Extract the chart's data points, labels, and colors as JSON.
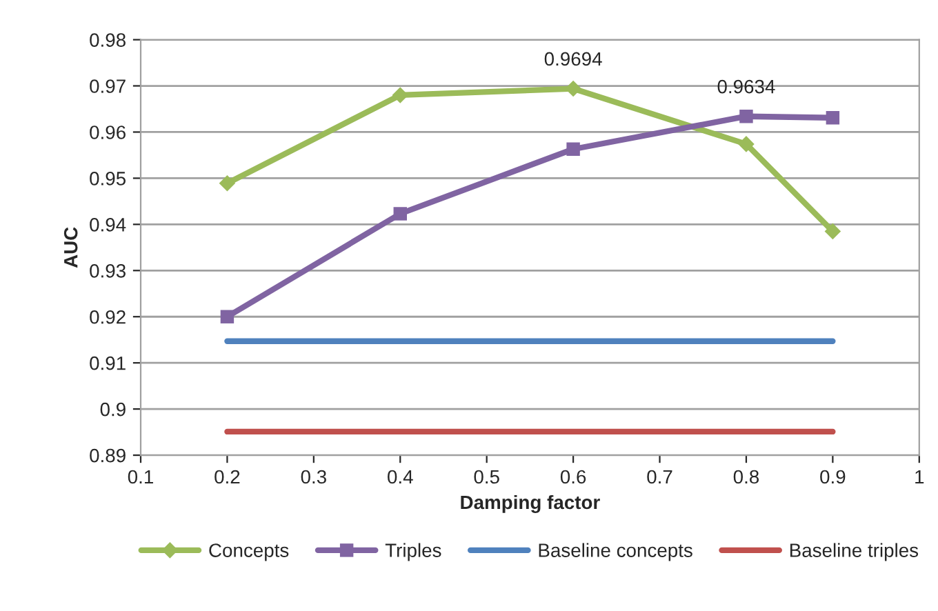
{
  "chart_data": {
    "type": "line",
    "xlabel": "Damping factor",
    "ylabel": "AUC",
    "xlim": [
      0.1,
      1
    ],
    "xticks": [
      0.1,
      0.2,
      0.3,
      0.4,
      0.5,
      0.6,
      0.7,
      0.8,
      0.9,
      1
    ],
    "ylim": [
      0.89,
      0.98
    ],
    "yticks": [
      0.89,
      0.9,
      0.91,
      0.92,
      0.93,
      0.94,
      0.95,
      0.96,
      0.97,
      0.98
    ],
    "grid": "y",
    "legend": "bottom",
    "series": [
      {
        "name": "Concepts",
        "color": "#9bbb59",
        "marker": "diamond",
        "x": [
          0.2,
          0.4,
          0.6,
          0.8,
          0.9
        ],
        "values": [
          0.9489,
          0.968,
          0.9694,
          0.9574,
          0.9385
        ]
      },
      {
        "name": "Triples",
        "color": "#8064a2",
        "marker": "square",
        "x": [
          0.2,
          0.4,
          0.6,
          0.8,
          0.9
        ],
        "values": [
          0.92,
          0.9423,
          0.9563,
          0.9634,
          0.9631
        ]
      },
      {
        "name": "Baseline concepts",
        "color": "#4f81bd",
        "marker": "none",
        "x": [
          0.2,
          0.9
        ],
        "values": [
          0.9147,
          0.9147
        ]
      },
      {
        "name": "Baseline triples",
        "color": "#c0504d",
        "marker": "none",
        "x": [
          0.2,
          0.9
        ],
        "values": [
          0.8951,
          0.8951
        ]
      }
    ],
    "annotations": [
      {
        "text": "0.9694",
        "x": 0.6,
        "y": 0.9694
      },
      {
        "text": "0.9634",
        "x": 0.8,
        "y": 0.9634
      }
    ]
  }
}
